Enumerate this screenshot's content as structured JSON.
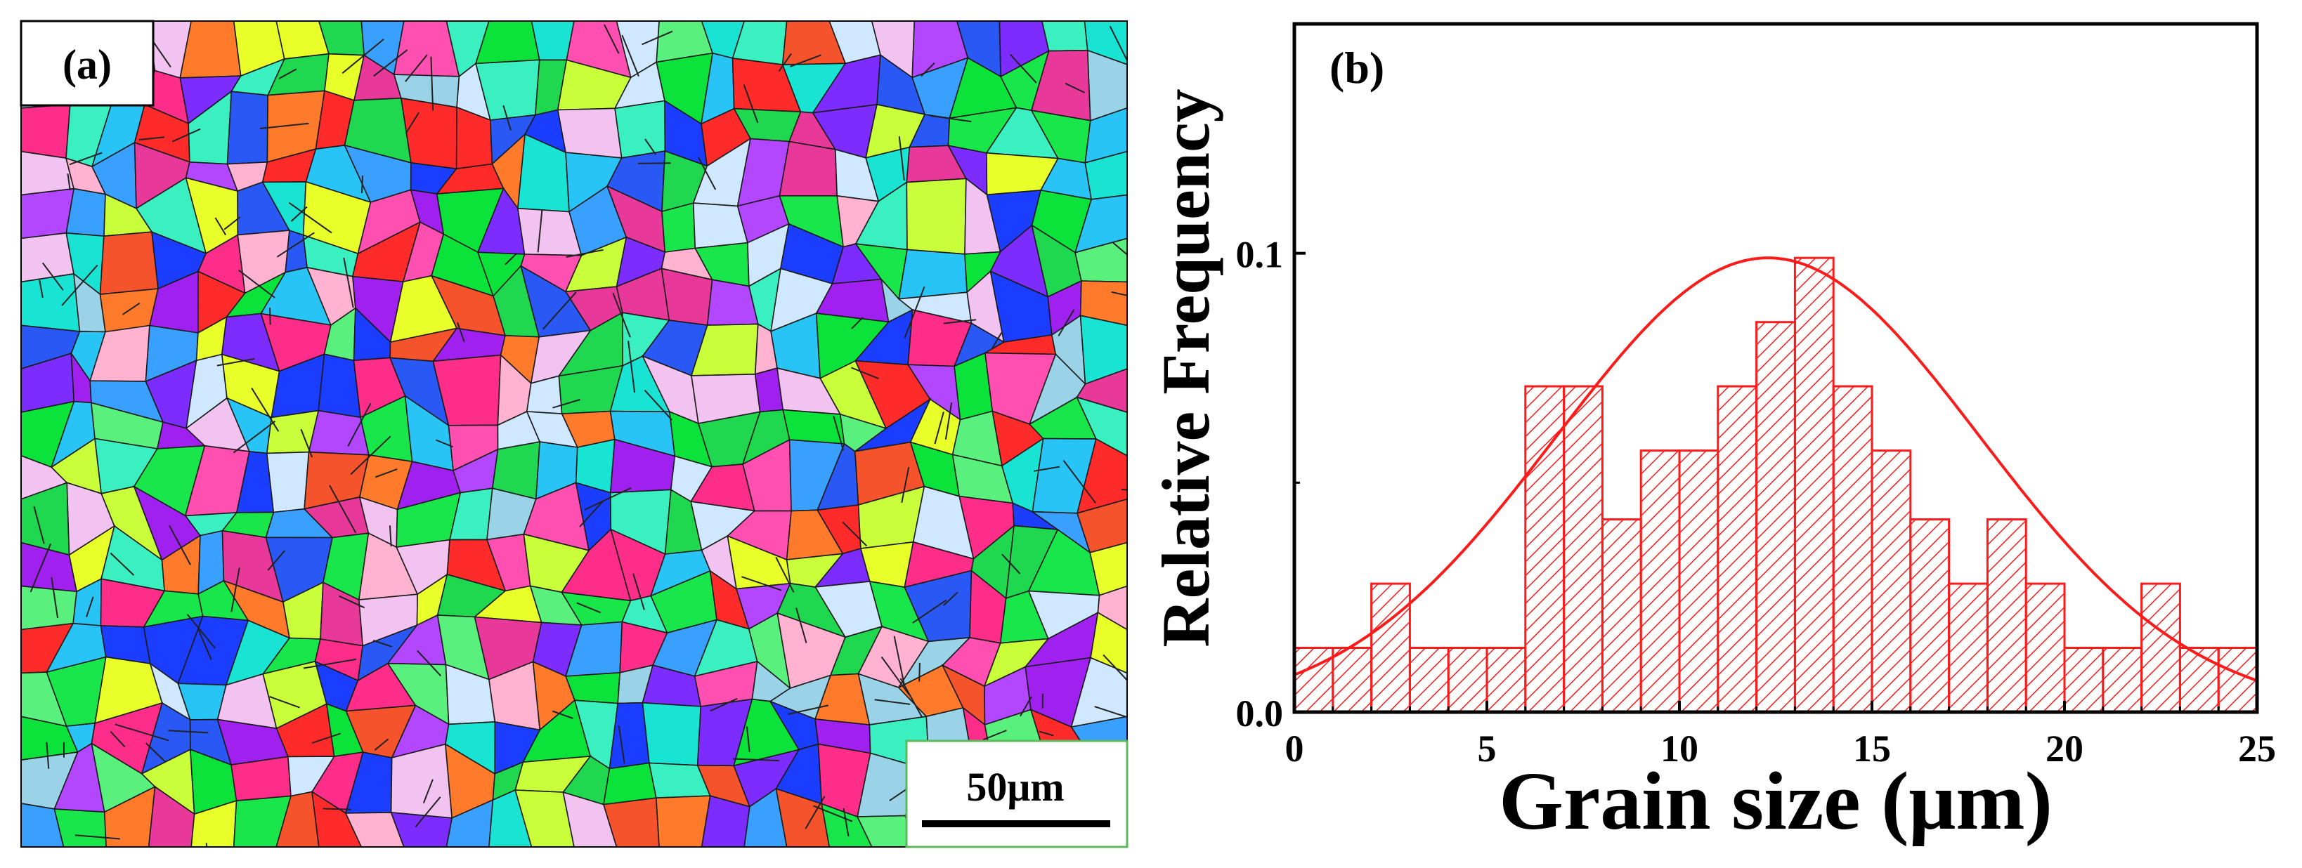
{
  "panel_a": {
    "label": "(a)",
    "scale_bar_label": "50μm",
    "palette": [
      "#19e64a",
      "#1fd84f",
      "#0be33a",
      "#5af07d",
      "#ff2d8a",
      "#e8389a",
      "#ff4fb0",
      "#a020f0",
      "#b347ff",
      "#7c2cff",
      "#1a3dff",
      "#2a58f5",
      "#3aa0ff",
      "#27c4f5",
      "#19e3d3",
      "#3af0c0",
      "#ff2a2a",
      "#f5532b",
      "#ff7a2a",
      "#e8ff2a",
      "#c8ff3a",
      "#ffb3d0",
      "#f2c2f0",
      "#cfe8ff",
      "#9ad3e8"
    ]
  },
  "panel_b": {
    "label": "(b)",
    "colors": {
      "accent": "#ff1a1a",
      "axis": "#000000"
    }
  },
  "chart_data": {
    "type": "bar",
    "title": "",
    "xlabel": "Grain size (μm)",
    "ylabel": "Relative Frequency",
    "xlim": [
      0,
      25
    ],
    "ylim": [
      0,
      0.15
    ],
    "x_ticks": [
      0,
      5,
      10,
      15,
      20,
      25
    ],
    "x_tick_labels": [
      "0",
      "5",
      "10",
      "15",
      "20",
      "25"
    ],
    "y_ticks": [
      0,
      0.1
    ],
    "y_tick_labels": [
      "0.0",
      "0.1"
    ],
    "bin_width": 1,
    "bin_starts": [
      0,
      1,
      2,
      3,
      4,
      5,
      6,
      7,
      8,
      9,
      10,
      11,
      12,
      13,
      14,
      15,
      16,
      17,
      18,
      19,
      20,
      21,
      22,
      23,
      24
    ],
    "values": [
      0.014,
      0.014,
      0.028,
      0.014,
      0.014,
      0.014,
      0.071,
      0.071,
      0.042,
      0.057,
      0.057,
      0.071,
      0.085,
      0.099,
      0.071,
      0.057,
      0.042,
      0.028,
      0.042,
      0.028,
      0.014,
      0.014,
      0.028,
      0.014,
      0.014
    ],
    "fit": {
      "type": "normal",
      "peak_x": 12.3,
      "peak_y": 0.099,
      "sigma": 5.5,
      "color": "#ff1a1a"
    },
    "bar_style": {
      "fill": "hatch",
      "color": "#ff1a1a"
    },
    "grid": false
  }
}
